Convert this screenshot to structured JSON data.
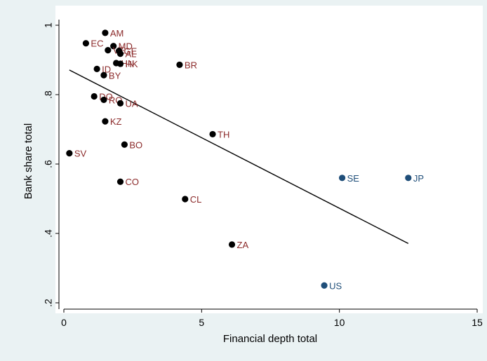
{
  "chart_data": {
    "type": "scatter",
    "xlabel": "Financial depth total",
    "ylabel": "Bank share total",
    "xlim": [
      -0.3,
      15.3
    ],
    "ylim": [
      0.19,
      1.02
    ],
    "xticks": [
      0,
      5,
      10,
      15
    ],
    "xtick_labels": [
      "0",
      "5",
      "10",
      "15"
    ],
    "yticks": [
      0.2,
      0.4,
      0.6,
      0.8,
      1
    ],
    "ytick_labels": [
      ".2",
      ".4",
      ".6",
      ".8",
      "1"
    ],
    "grid": false,
    "legend": "none",
    "colors": {
      "background_outer": "#eaf2f3",
      "plot_area": "#ffffff",
      "marker_group_1": "#000000",
      "label_group_1": "#8b2a2a",
      "marker_group_2": "#1f4e79",
      "label_group_2": "#1f4e79",
      "fit_line": "#000000"
    },
    "points": [
      {
        "label": "AM",
        "x": 1.5,
        "y": 0.978,
        "group": 1
      },
      {
        "label": "EC",
        "x": 0.8,
        "y": 0.948,
        "group": 1
      },
      {
        "label": "MD",
        "x": 1.8,
        "y": 0.94,
        "group": 1
      },
      {
        "label": "VE",
        "x": 1.6,
        "y": 0.928,
        "group": 1
      },
      {
        "label": "GE",
        "x": 2.0,
        "y": 0.926,
        "group": 1
      },
      {
        "label": "AL",
        "x": 2.05,
        "y": 0.918,
        "group": 1
      },
      {
        "label": "HN",
        "x": 1.9,
        "y": 0.891,
        "group": 1
      },
      {
        "label": "HK",
        "x": 2.05,
        "y": 0.889,
        "group": 1
      },
      {
        "label": "BR",
        "x": 4.2,
        "y": 0.886,
        "group": 1
      },
      {
        "label": "ID",
        "x": 1.2,
        "y": 0.874,
        "group": 1
      },
      {
        "label": "BY",
        "x": 1.45,
        "y": 0.856,
        "group": 1
      },
      {
        "label": "DO",
        "x": 1.1,
        "y": 0.795,
        "group": 1
      },
      {
        "label": "RO",
        "x": 1.45,
        "y": 0.785,
        "group": 1
      },
      {
        "label": "UA",
        "x": 2.05,
        "y": 0.775,
        "group": 1
      },
      {
        "label": "KZ",
        "x": 1.5,
        "y": 0.723,
        "group": 1
      },
      {
        "label": "TH",
        "x": 5.4,
        "y": 0.686,
        "group": 1
      },
      {
        "label": "BO",
        "x": 2.2,
        "y": 0.656,
        "group": 1
      },
      {
        "label": "SV",
        "x": 0.2,
        "y": 0.631,
        "group": 1
      },
      {
        "label": "SE",
        "x": 10.1,
        "y": 0.56,
        "group": 2
      },
      {
        "label": "JP",
        "x": 12.5,
        "y": 0.56,
        "group": 2
      },
      {
        "label": "CO",
        "x": 2.05,
        "y": 0.549,
        "group": 1
      },
      {
        "label": "CL",
        "x": 4.4,
        "y": 0.499,
        "group": 1
      },
      {
        "label": "ZA",
        "x": 6.1,
        "y": 0.368,
        "group": 1
      },
      {
        "label": "US",
        "x": 9.45,
        "y": 0.25,
        "group": 2
      }
    ],
    "fit_line": {
      "x": [
        0.2,
        12.5
      ],
      "y": [
        0.871,
        0.371
      ]
    }
  }
}
